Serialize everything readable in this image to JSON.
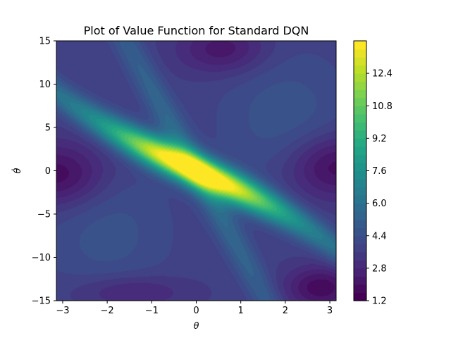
{
  "chart_data": {
    "type": "heatmap",
    "subtype": "filled-contour",
    "title": "Plot of Value Function for Standard DQN",
    "xlabel": "θ",
    "ylabel": "θ̇",
    "xlim": [
      -3.14159,
      3.14159
    ],
    "ylim": [
      -15,
      15
    ],
    "x_ticks": [
      -3,
      -2,
      -1,
      0,
      1,
      2,
      3
    ],
    "x_tick_labels": [
      "−3",
      "−2",
      "−1",
      "0",
      "1",
      "2",
      "3"
    ],
    "y_ticks": [
      -15,
      -10,
      -5,
      0,
      5,
      10,
      15
    ],
    "y_tick_labels": [
      "−15",
      "−10",
      "−5",
      "0",
      "5",
      "10",
      "15"
    ],
    "colormap": "viridis",
    "colorbar": {
      "range": [
        1.2,
        14.0
      ],
      "ticks": [
        1.2,
        2.8,
        4.4,
        6.0,
        7.6,
        9.2,
        10.8,
        12.4
      ],
      "tick_labels": [
        "1.2",
        "2.8",
        "4.4",
        "6.0",
        "7.6",
        "9.2",
        "10.8",
        "12.4"
      ],
      "levels": 32
    },
    "features": {
      "main_ridge": {
        "description_values": "high value band along θ̇ ≈ -2.2·θ (curving), peak ≈ 13.6 near origin",
        "points": [
          {
            "x": -3.14,
            "y": 7.2,
            "value": 9.5
          },
          {
            "x": -2.0,
            "y": 5.0,
            "value": 10.5
          },
          {
            "x": -1.0,
            "y": 2.5,
            "value": 12.0
          },
          {
            "x": 0.0,
            "y": -0.5,
            "value": 13.6
          },
          {
            "x": 1.0,
            "y": -3.5,
            "value": 12.0
          },
          {
            "x": 2.0,
            "y": -5.5,
            "value": 10.0
          },
          {
            "x": 3.14,
            "y": -7.0,
            "value": 8.0
          }
        ]
      },
      "secondary_ridge": {
        "points": [
          {
            "x": -1.6,
            "y": 15,
            "value": 5.5
          },
          {
            "x": 0.0,
            "y": 0,
            "value": 6.0
          },
          {
            "x": 1.6,
            "y": -15,
            "value": 5.5
          }
        ]
      },
      "low_regions": [
        {
          "x": -3.0,
          "y": 0.0,
          "value": 1.6
        },
        {
          "x": 3.0,
          "y": 0.0,
          "value": 1.6
        },
        {
          "x": 0.5,
          "y": 14.0,
          "value": 2.0
        },
        {
          "x": 2.8,
          "y": -13.0,
          "value": 1.5
        }
      ]
    }
  }
}
